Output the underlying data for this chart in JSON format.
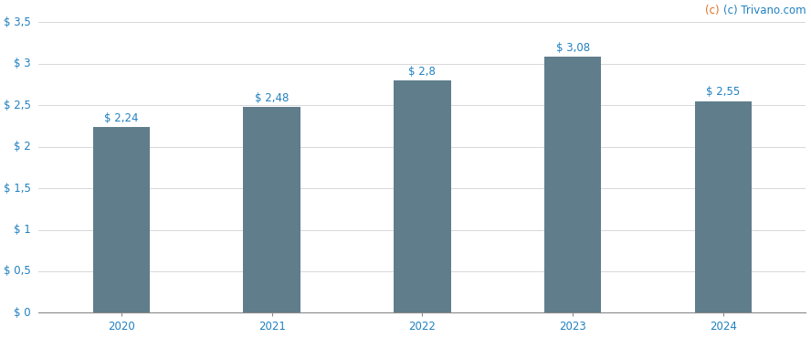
{
  "categories": [
    "2020",
    "2021",
    "2022",
    "2023",
    "2024"
  ],
  "values": [
    2.24,
    2.48,
    2.8,
    3.08,
    2.55
  ],
  "bar_color": "#607d8b",
  "bar_width": 0.38,
  "ylim": [
    0,
    3.5
  ],
  "yticks": [
    0,
    0.5,
    1.0,
    1.5,
    2.0,
    2.5,
    3.0,
    3.5
  ],
  "ytick_labels_dollar": [
    "$ 0",
    "$ 0,5",
    "$ 1",
    "$ 1,5",
    "$ 2",
    "$ 2,5",
    "$ 3",
    "$ 3,5"
  ],
  "bar_labels": [
    "$ 2,24",
    "$ 2,48",
    "$ 2,8",
    "$ 3,08",
    "$ 2,55"
  ],
  "background_color": "#ffffff",
  "grid_color": "#d8d8d8",
  "watermark_color_c": "#e07020",
  "watermark_color_rest": "#2080c0",
  "label_fontsize": 8.5,
  "tick_fontsize": 8.5,
  "watermark_fontsize": 8.5,
  "dollar_color": "#e07020",
  "number_color": "#2080c0"
}
